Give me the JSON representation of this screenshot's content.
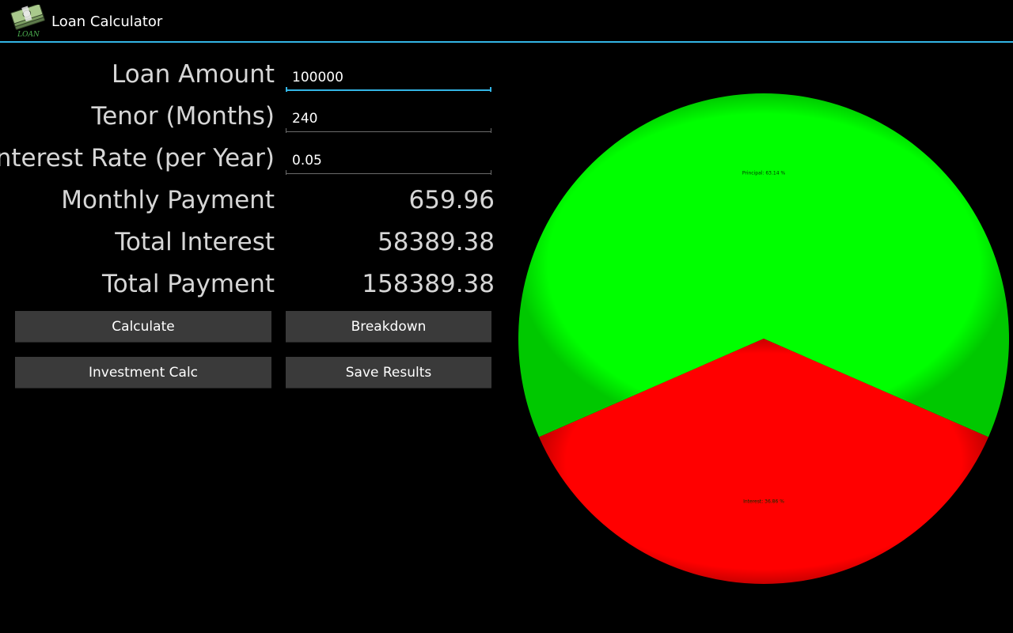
{
  "app": {
    "title": "Loan Calculator",
    "icon": "money-stack-icon",
    "icon_caption": "LOAN"
  },
  "form": {
    "loan_amount": {
      "label": "Loan Amount",
      "value": "100000"
    },
    "tenor": {
      "label": "Tenor (Months)",
      "value": "240"
    },
    "interest_rate": {
      "label": "Interest Rate (per Year)",
      "value": "0.05"
    }
  },
  "results": {
    "monthly_payment": {
      "label": "Monthly Payment",
      "value": "659.96"
    },
    "total_interest": {
      "label": "Total Interest",
      "value": "58389.38"
    },
    "total_payment": {
      "label": "Total Payment",
      "value": "158389.38"
    }
  },
  "buttons": {
    "calculate": "Calculate",
    "breakdown": "Breakdown",
    "investment_calc": "Investment Calc",
    "save_results": "Save Results"
  },
  "colors": {
    "accent": "#33b5e5",
    "principal": "#00ff00",
    "interest": "#ff0000"
  },
  "chart_data": {
    "type": "pie",
    "categories": [
      "Principal",
      "Interest"
    ],
    "values": [
      63.14,
      36.86
    ],
    "labels": [
      "Principal: 63.14 %",
      "Interest: 36.86 %"
    ],
    "colors": [
      "#00ff00",
      "#ff0000"
    ]
  }
}
